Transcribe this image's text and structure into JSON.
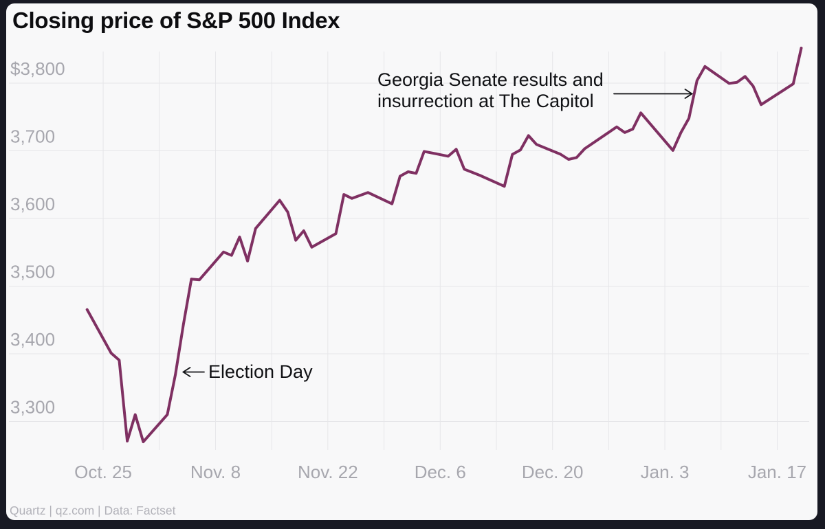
{
  "footer": {
    "credit": "Quartz | qz.com | Data: Factset"
  },
  "chart_data": {
    "type": "line",
    "title": "Closing price of S&P 500 Index",
    "xlabel": "",
    "ylabel": "",
    "legend": false,
    "grid": true,
    "line_color": "#7f3062",
    "background_color": "#f8f8f9",
    "gridline_color": "#e6e6e9",
    "tick_color": "#a7a7ae",
    "ylim": [
      3258,
      3847
    ],
    "y_ticks": [
      {
        "value": 3800,
        "label": "$3,800"
      },
      {
        "value": 3700,
        "label": "3,700"
      },
      {
        "value": 3600,
        "label": "3,600"
      },
      {
        "value": 3500,
        "label": "3,500"
      },
      {
        "value": 3400,
        "label": "3,400"
      },
      {
        "value": 3300,
        "label": "3,300"
      }
    ],
    "x_ticks": [
      {
        "date": "2020-10-25",
        "label": "Oct. 25"
      },
      {
        "date": "2020-11-08",
        "label": "Nov. 8"
      },
      {
        "date": "2020-11-22",
        "label": "Nov. 22"
      },
      {
        "date": "2020-12-06",
        "label": "Dec. 6"
      },
      {
        "date": "2020-12-20",
        "label": "Dec. 20"
      },
      {
        "date": "2021-01-03",
        "label": "Jan. 3"
      },
      {
        "date": "2021-01-17",
        "label": "Jan. 17"
      }
    ],
    "week_gridlines": [
      "2020-10-25",
      "2020-11-01",
      "2020-11-08",
      "2020-11-15",
      "2020-11-22",
      "2020-11-29",
      "2020-12-06",
      "2020-12-13",
      "2020-12-20",
      "2020-12-27",
      "2021-01-03",
      "2021-01-10",
      "2021-01-17"
    ],
    "series": [
      {
        "name": "S&P 500 Index closing price",
        "points": [
          [
            "2020-10-23",
            3465.39
          ],
          [
            "2020-10-26",
            3400.97
          ],
          [
            "2020-10-27",
            3390.68
          ],
          [
            "2020-10-28",
            3271.03
          ],
          [
            "2020-10-29",
            3310.11
          ],
          [
            "2020-10-30",
            3269.96
          ],
          [
            "2020-11-02",
            3310.24
          ],
          [
            "2020-11-03",
            3369.16
          ],
          [
            "2020-11-04",
            3443.44
          ],
          [
            "2020-11-05",
            3510.45
          ],
          [
            "2020-11-06",
            3509.44
          ],
          [
            "2020-11-09",
            3550.5
          ],
          [
            "2020-11-10",
            3545.53
          ],
          [
            "2020-11-11",
            3572.66
          ],
          [
            "2020-11-12",
            3537.01
          ],
          [
            "2020-11-13",
            3585.15
          ],
          [
            "2020-11-16",
            3626.91
          ],
          [
            "2020-11-17",
            3609.53
          ],
          [
            "2020-11-18",
            3567.79
          ],
          [
            "2020-11-19",
            3581.87
          ],
          [
            "2020-11-20",
            3557.54
          ],
          [
            "2020-11-23",
            3577.59
          ],
          [
            "2020-11-24",
            3635.41
          ],
          [
            "2020-11-25",
            3629.65
          ],
          [
            "2020-11-27",
            3638.35
          ],
          [
            "2020-11-30",
            3621.63
          ],
          [
            "2020-12-01",
            3662.45
          ],
          [
            "2020-12-02",
            3669.01
          ],
          [
            "2020-12-03",
            3666.72
          ],
          [
            "2020-12-04",
            3699.12
          ],
          [
            "2020-12-07",
            3691.96
          ],
          [
            "2020-12-08",
            3702.25
          ],
          [
            "2020-12-09",
            3672.82
          ],
          [
            "2020-12-10",
            3668.1
          ],
          [
            "2020-12-11",
            3663.46
          ],
          [
            "2020-12-14",
            3647.49
          ],
          [
            "2020-12-15",
            3694.62
          ],
          [
            "2020-12-16",
            3701.17
          ],
          [
            "2020-12-17",
            3722.48
          ],
          [
            "2020-12-18",
            3709.41
          ],
          [
            "2020-12-21",
            3694.92
          ],
          [
            "2020-12-22",
            3687.26
          ],
          [
            "2020-12-23",
            3690.01
          ],
          [
            "2020-12-24",
            3703.06
          ],
          [
            "2020-12-28",
            3735.36
          ],
          [
            "2020-12-29",
            3727.04
          ],
          [
            "2020-12-30",
            3732.04
          ],
          [
            "2020-12-31",
            3756.07
          ],
          [
            "2021-01-04",
            3700.65
          ],
          [
            "2021-01-05",
            3726.86
          ],
          [
            "2021-01-06",
            3748.14
          ],
          [
            "2021-01-07",
            3803.79
          ],
          [
            "2021-01-08",
            3824.68
          ],
          [
            "2021-01-11",
            3799.61
          ],
          [
            "2021-01-12",
            3801.19
          ],
          [
            "2021-01-13",
            3809.84
          ],
          [
            "2021-01-14",
            3795.54
          ],
          [
            "2021-01-15",
            3768.25
          ],
          [
            "2021-01-19",
            3798.91
          ],
          [
            "2021-01-20",
            3851.85
          ]
        ]
      }
    ],
    "annotations": {
      "election": {
        "text": "Election Day",
        "arrow": "left",
        "target_date": "2020-11-03",
        "target_value": 3369.16
      },
      "georgia": {
        "line1": "Georgia Senate results and",
        "line2": "insurrection at The Capitol",
        "arrow": "right",
        "target_date": "2021-01-06",
        "target_value": 3760
      }
    }
  }
}
